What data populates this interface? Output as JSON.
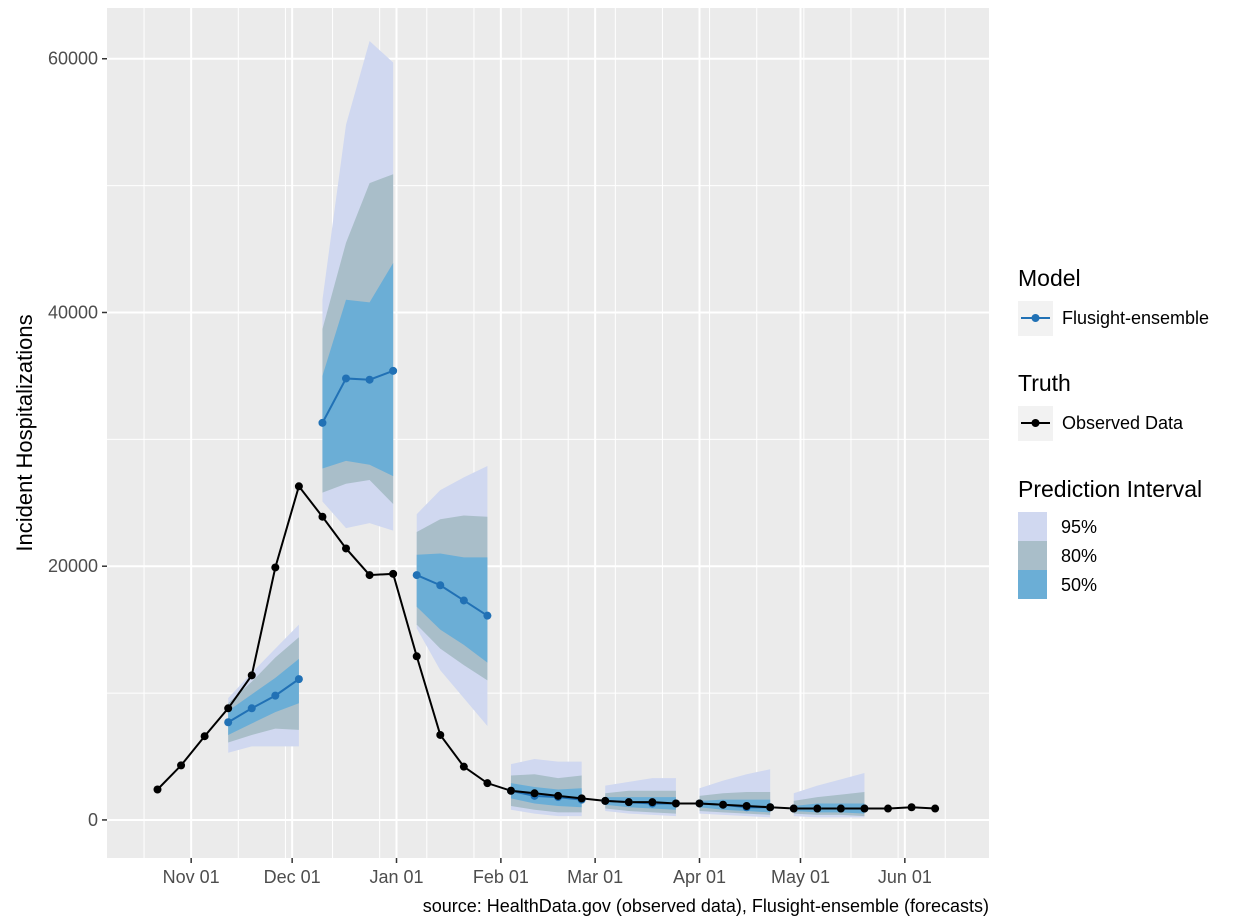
{
  "chart_data": {
    "type": "line",
    "ylabel": "Incident Hospitalizations",
    "caption": "source: HealthData.gov (observed data), Flusight-ensemble (forecasts)",
    "x_ticks": [
      "Nov 01",
      "Dec 01",
      "Jan 01",
      "Feb 01",
      "Mar 01",
      "Apr 01",
      "May 01",
      "Jun 01"
    ],
    "y_ticks": [
      "0",
      "20000",
      "40000",
      "60000"
    ],
    "xlim": [
      "2022-10-07",
      "2023-06-26"
    ],
    "ylim": [
      -3000,
      64000
    ],
    "grid": true,
    "legend_position": "right",
    "observed": {
      "name": "Observed Data",
      "color": "#000000",
      "x": [
        "2022-10-22",
        "2022-10-29",
        "2022-11-05",
        "2022-11-12",
        "2022-11-19",
        "2022-11-26",
        "2022-12-03",
        "2022-12-10",
        "2022-12-17",
        "2022-12-24",
        "2022-12-31",
        "2023-01-07",
        "2023-01-14",
        "2023-01-21",
        "2023-01-28",
        "2023-02-04",
        "2023-02-11",
        "2023-02-18",
        "2023-02-25",
        "2023-03-04",
        "2023-03-11",
        "2023-03-18",
        "2023-03-25",
        "2023-04-01",
        "2023-04-08",
        "2023-04-15",
        "2023-04-22",
        "2023-04-29",
        "2023-05-06",
        "2023-05-13",
        "2023-05-20",
        "2023-05-27",
        "2023-06-03",
        "2023-06-10"
      ],
      "y": [
        2400,
        4300,
        6600,
        8800,
        11400,
        19900,
        26300,
        23900,
        21400,
        19300,
        19400,
        12900,
        6700,
        4200,
        2900,
        2300,
        2100,
        1900,
        1700,
        1500,
        1400,
        1400,
        1300,
        1300,
        1200,
        1100,
        1000,
        900,
        900,
        900,
        900,
        900,
        1000,
        900
      ]
    },
    "forecasts": [
      {
        "x": [
          "2022-11-12",
          "2022-11-19",
          "2022-11-26",
          "2022-12-03"
        ],
        "median": [
          7700,
          8800,
          9800,
          11100
        ],
        "pi50": [
          [
            6700,
            7600,
            8500,
            9200
          ],
          [
            8600,
            9900,
            11200,
            12700
          ]
        ],
        "pi80": [
          [
            6100,
            6700,
            7200,
            7100
          ],
          [
            9200,
            10900,
            12800,
            14400
          ]
        ],
        "pi95": [
          [
            5300,
            5800,
            5800,
            5800
          ],
          [
            9600,
            11600,
            13500,
            15400
          ]
        ]
      },
      {
        "x": [
          "2022-12-10",
          "2022-12-17",
          "2022-12-24",
          "2022-12-31"
        ],
        "median": [
          31300,
          34800,
          34700,
          35400
        ],
        "pi50": [
          [
            27700,
            28300,
            28000,
            27100
          ],
          [
            35000,
            41000,
            40800,
            43900
          ]
        ],
        "pi80": [
          [
            25800,
            26500,
            26800,
            24900
          ],
          [
            38700,
            45500,
            50200,
            50900
          ]
        ],
        "pi95": [
          [
            25100,
            23000,
            23400,
            22800
          ],
          [
            41000,
            54800,
            61400,
            59700
          ]
        ]
      },
      {
        "x": [
          "2023-01-07",
          "2023-01-14",
          "2023-01-21",
          "2023-01-28"
        ],
        "median": [
          19300,
          18500,
          17300,
          16100
        ],
        "pi50": [
          [
            16800,
            15000,
            13800,
            12400
          ],
          [
            20900,
            21000,
            20700,
            20700
          ]
        ],
        "pi80": [
          [
            15400,
            13500,
            12200,
            11000
          ],
          [
            22700,
            23700,
            24000,
            23900
          ]
        ],
        "pi95": [
          [
            15100,
            11800,
            9600,
            7400
          ],
          [
            24100,
            26000,
            27000,
            27900
          ]
        ]
      },
      {
        "x": [
          "2023-02-04",
          "2023-02-11",
          "2023-02-18",
          "2023-02-25"
        ],
        "median": [
          2300,
          1900,
          1800,
          1600
        ],
        "pi50": [
          [
            1700,
            1300,
            1100,
            1000
          ],
          [
            2900,
            2600,
            2400,
            2500
          ]
        ],
        "pi80": [
          [
            1100,
            800,
            600,
            600
          ],
          [
            3500,
            3600,
            3300,
            3500
          ]
        ],
        "pi95": [
          [
            800,
            500,
            300,
            300
          ],
          [
            4400,
            4800,
            4600,
            4600
          ]
        ]
      },
      {
        "x": [
          "2023-03-04",
          "2023-03-11",
          "2023-03-18",
          "2023-03-25"
        ],
        "median": [
          1500,
          1400,
          1300,
          1300
        ],
        "pi50": [
          [
            1200,
            1000,
            900,
            800
          ],
          [
            1800,
            1800,
            1800,
            1800
          ]
        ],
        "pi80": [
          [
            900,
            700,
            600,
            500
          ],
          [
            2100,
            2300,
            2300,
            2300
          ]
        ],
        "pi95": [
          [
            700,
            500,
            400,
            300
          ],
          [
            2700,
            3000,
            3300,
            3300
          ]
        ]
      },
      {
        "x": [
          "2023-04-01",
          "2023-04-08",
          "2023-04-15",
          "2023-04-22"
        ],
        "median": [
          1300,
          1200,
          1000,
          1000
        ],
        "pi50": [
          [
            1000,
            800,
            700,
            600
          ],
          [
            1500,
            1600,
            1600,
            1600
          ]
        ],
        "pi80": [
          [
            700,
            600,
            500,
            400
          ],
          [
            1900,
            2100,
            2200,
            2200
          ]
        ],
        "pi95": [
          [
            500,
            400,
            300,
            200
          ],
          [
            2500,
            3100,
            3600,
            4000
          ]
        ]
      },
      {
        "x": [
          "2023-04-29",
          "2023-05-06",
          "2023-05-13",
          "2023-05-20"
        ],
        "median": [
          900,
          900,
          900,
          900
        ],
        "pi50": [
          [
            700,
            600,
            600,
            500
          ],
          [
            1100,
            1300,
            1300,
            1300
          ]
        ],
        "pi80": [
          [
            500,
            400,
            400,
            300
          ],
          [
            1500,
            1800,
            2000,
            2200
          ]
        ],
        "pi95": [
          [
            300,
            200,
            200,
            200
          ],
          [
            2100,
            2700,
            3200,
            3700
          ]
        ]
      }
    ],
    "legend": {
      "model_title": "Model",
      "model_label": "Flusight-ensemble",
      "truth_title": "Truth",
      "truth_label": "Observed Data",
      "pi_title": "Prediction Interval",
      "pi_labels": [
        "95%",
        "80%",
        "50%"
      ]
    },
    "colors": {
      "panel": "#ebebeb",
      "grid": "#ffffff",
      "forecast_line": "#2171b5",
      "pi95": "#d0d8f0",
      "pi80": "#a9bec9",
      "pi50": "#6baed6",
      "observed": "#000000"
    }
  }
}
